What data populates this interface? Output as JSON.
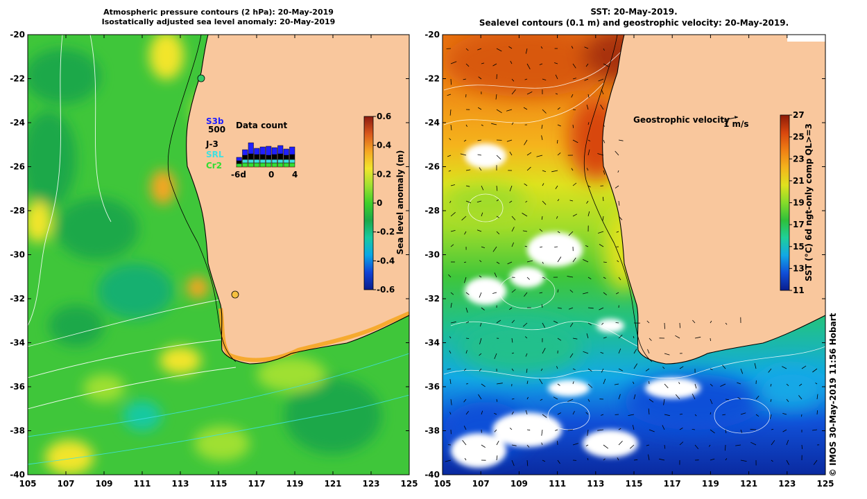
{
  "left_panel": {
    "title_line1": "Atmospheric pressure contours (2 hPa): 20-May-2019",
    "title_line2": "Isostatically adjusted sea level anomaly: 20-May-2019",
    "x_ticks": [
      "105",
      "107",
      "109",
      "111",
      "113",
      "115",
      "117",
      "119",
      "121",
      "123",
      "125"
    ],
    "y_ticks": [
      "-20",
      "-22",
      "-24",
      "-26",
      "-28",
      "-30",
      "-32",
      "-34",
      "-36",
      "-38",
      "-40"
    ],
    "colorbar": {
      "label": "Sea level anomaly (m)",
      "ticks": [
        "0.6",
        "0.4",
        "0.2",
        "0",
        "-0.2",
        "-0.4",
        "-0.6"
      ],
      "colors": [
        "#0a1d8c",
        "#1043d6",
        "#0aa7e6",
        "#18c9a0",
        "#1aa84a",
        "#3fd02a",
        "#9fe030",
        "#f2e52c",
        "#f5a623",
        "#d9581c",
        "#8c1a10"
      ]
    },
    "data_count": {
      "title": "Data count",
      "scale_label": "500",
      "satellites": [
        {
          "name": "S3b",
          "color": "#2020ff"
        },
        {
          "name": "J-3",
          "color": "#000000"
        },
        {
          "name": "SRL",
          "color": "#40e0e0"
        },
        {
          "name": "Cr2",
          "color": "#33dd33"
        }
      ],
      "x_labels": [
        "-6d",
        "0",
        "4"
      ]
    }
  },
  "right_panel": {
    "title_line1": "SST: 20-May-2019.",
    "title_line2": "Sealevel contours (0.1 m) and geostrophic velocity: 20-May-2019.",
    "x_ticks": [
      "105",
      "107",
      "109",
      "111",
      "113",
      "115",
      "117",
      "119",
      "121",
      "123",
      "125"
    ],
    "y_ticks": [
      "-20",
      "-22",
      "-24",
      "-26",
      "-28",
      "-30",
      "-32",
      "-34",
      "-36",
      "-38",
      "-40"
    ],
    "velocity_label": "Geostrophic velocity",
    "velocity_scale": "1 m/s",
    "colorbar": {
      "label": "SST (°C) 6d ngt-only comp QL>=3",
      "ticks": [
        "27",
        "25",
        "23",
        "21",
        "19",
        "17",
        "15",
        "13",
        "11"
      ],
      "colors": [
        "#0a1d8c",
        "#1050d8",
        "#12a8e6",
        "#1fcf9a",
        "#2fbf3a",
        "#86dc2a",
        "#dfe21e",
        "#f4b41c",
        "#ef7f14",
        "#d8460e",
        "#8c1a08"
      ]
    }
  },
  "credit": "© IMOS 30-May-2019 11:56 Hobart",
  "map_colors": {
    "land": "#f9c79d",
    "coastline": "#000000",
    "contour": "#ffffff"
  }
}
